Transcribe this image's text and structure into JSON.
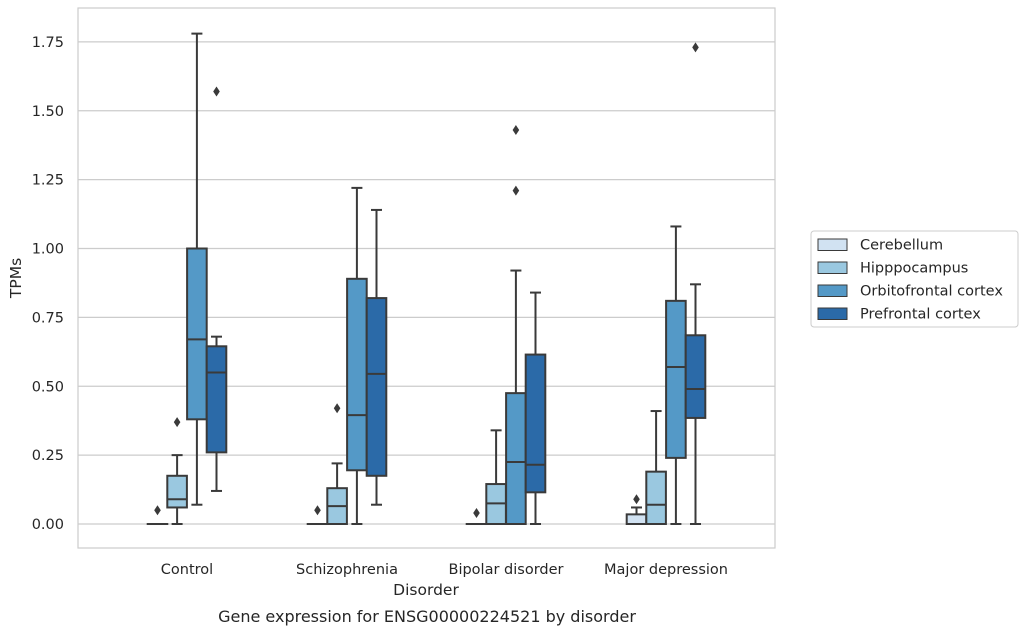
{
  "chart_data": {
    "type": "box",
    "caption": "Gene expression for ENSG00000224521 by disorder",
    "xlabel": "Disorder",
    "ylabel": "TPMs",
    "ylim": [
      -0.085,
      1.825
    ],
    "yticks": [
      0.0,
      0.25,
      0.5,
      0.75,
      1.0,
      1.25,
      1.5,
      1.75
    ],
    "ytick_labels": [
      "0.00",
      "0.25",
      "0.50",
      "0.75",
      "1.00",
      "1.25",
      "1.50",
      "1.75"
    ],
    "grid": "horizontal",
    "legend_position": "right",
    "categories": [
      "Control",
      "Schizophrenia",
      "Bipolar disorder",
      "Major depression"
    ],
    "series": [
      {
        "name": "Cerebellum",
        "color": "#d1e2f2",
        "boxes": [
          {
            "whislo": 0.0,
            "q1": 0.0,
            "med": 0.0,
            "q3": 0.0,
            "whishi": 0.0,
            "fliers": [
              0.05
            ]
          },
          {
            "whislo": 0.0,
            "q1": 0.0,
            "med": 0.0,
            "q3": 0.0,
            "whishi": 0.0,
            "fliers": [
              0.05
            ]
          },
          {
            "whislo": 0.0,
            "q1": 0.0,
            "med": 0.0,
            "q3": 0.0,
            "whishi": 0.0,
            "fliers": [
              0.04
            ]
          },
          {
            "whislo": 0.0,
            "q1": 0.0,
            "med": 0.0,
            "q3": 0.035,
            "whishi": 0.06,
            "fliers": [
              0.09
            ]
          }
        ]
      },
      {
        "name": "Hipppocampus",
        "color": "#9ac8e0",
        "boxes": [
          {
            "whislo": 0.0,
            "q1": 0.06,
            "med": 0.09,
            "q3": 0.175,
            "whishi": 0.25,
            "fliers": [
              0.37
            ]
          },
          {
            "whislo": 0.0,
            "q1": 0.0,
            "med": 0.065,
            "q3": 0.13,
            "whishi": 0.22,
            "fliers": [
              0.42
            ]
          },
          {
            "whislo": 0.0,
            "q1": 0.0,
            "med": 0.075,
            "q3": 0.145,
            "whishi": 0.34,
            "fliers": []
          },
          {
            "whislo": 0.0,
            "q1": 0.0,
            "med": 0.07,
            "q3": 0.19,
            "whishi": 0.41,
            "fliers": []
          }
        ]
      },
      {
        "name": "Orbitofrontal cortex",
        "color": "#5499c7",
        "boxes": [
          {
            "whislo": 0.07,
            "q1": 0.38,
            "med": 0.67,
            "q3": 1.0,
            "whishi": 1.78,
            "fliers": []
          },
          {
            "whislo": 0.0,
            "q1": 0.195,
            "med": 0.395,
            "q3": 0.89,
            "whishi": 1.22,
            "fliers": []
          },
          {
            "whislo": 0.0,
            "q1": 0.0,
            "med": 0.225,
            "q3": 0.475,
            "whishi": 0.92,
            "fliers": [
              1.21,
              1.43
            ]
          },
          {
            "whislo": 0.0,
            "q1": 0.24,
            "med": 0.57,
            "q3": 0.81,
            "whishi": 1.08,
            "fliers": []
          }
        ]
      },
      {
        "name": "Prefrontal cortex",
        "color": "#2b6aa8",
        "boxes": [
          {
            "whislo": 0.12,
            "q1": 0.26,
            "med": 0.55,
            "q3": 0.645,
            "whishi": 0.68,
            "fliers": [
              1.57
            ]
          },
          {
            "whislo": 0.07,
            "q1": 0.175,
            "med": 0.545,
            "q3": 0.82,
            "whishi": 1.14,
            "fliers": []
          },
          {
            "whislo": 0.0,
            "q1": 0.115,
            "med": 0.215,
            "q3": 0.615,
            "whishi": 0.84,
            "fliers": []
          },
          {
            "whislo": 0.0,
            "q1": 0.385,
            "med": 0.49,
            "q3": 0.685,
            "whishi": 0.87,
            "fliers": [
              1.73
            ]
          }
        ]
      }
    ]
  }
}
